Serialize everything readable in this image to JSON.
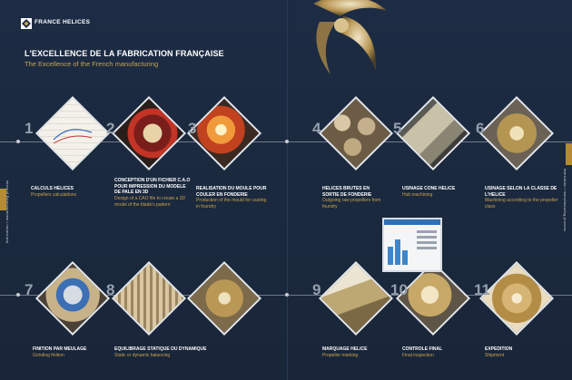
{
  "brand": {
    "name": "FRANCE HELICES"
  },
  "header": {
    "title": "L'EXCELLENCE DE LA FABRICATION FRANÇAISE",
    "subtitle": "The Excellence of the French manufacturing"
  },
  "side_labels": {
    "left": "fabrication / manufacturing process",
    "right": "fabrication / manufacturing process"
  },
  "steps": [
    {
      "number": "1",
      "title": "CALCULS HELICES",
      "subtitle": "Propellers calculations"
    },
    {
      "number": "2",
      "title": "CONCEPTION D'UN FICHIER C.A.O POUR IMPRESSION DU MODELE DE PALE EN 3D",
      "subtitle": "Design of a CAO file to create a 3D model of the blade's pattern"
    },
    {
      "number": "3",
      "title": "REALISATION DU MOULE POUR COULER EN FONDERIE",
      "subtitle": "Production of the mould for casting in foundry"
    },
    {
      "number": "4",
      "title": "HELICES BRUTES EN SORTIE DE FONDERIE",
      "subtitle": "Outgoing raw propellers from foundry"
    },
    {
      "number": "5",
      "title": "USINAGE CONE HELICE",
      "subtitle": "Hub machining"
    },
    {
      "number": "6",
      "title": "USINAGE SELON LA CLASSE DE L'HELICE",
      "subtitle": "Machining according to the propeller class"
    },
    {
      "number": "7",
      "title": "FINITION PAR MEULAGE",
      "subtitle": "Grinding finition"
    },
    {
      "number": "8",
      "title": "EQUILIBRAGE STATIQUE OU DYNAMIQUE",
      "subtitle": "Static or dynamic balancing"
    },
    {
      "number": "9",
      "title": "MARQUAGE HELICE",
      "subtitle": "Propeller marking"
    },
    {
      "number": "10",
      "title": "CONTROLE FINAL",
      "subtitle": "Final inspection"
    },
    {
      "number": "11",
      "title": "EXPEDITION",
      "subtitle": "Shipment"
    }
  ],
  "colors": {
    "background": "#1b2a40",
    "accent_gold": "#c9a24b",
    "text_white": "#ffffff",
    "number_grey": "#95a0ad"
  }
}
